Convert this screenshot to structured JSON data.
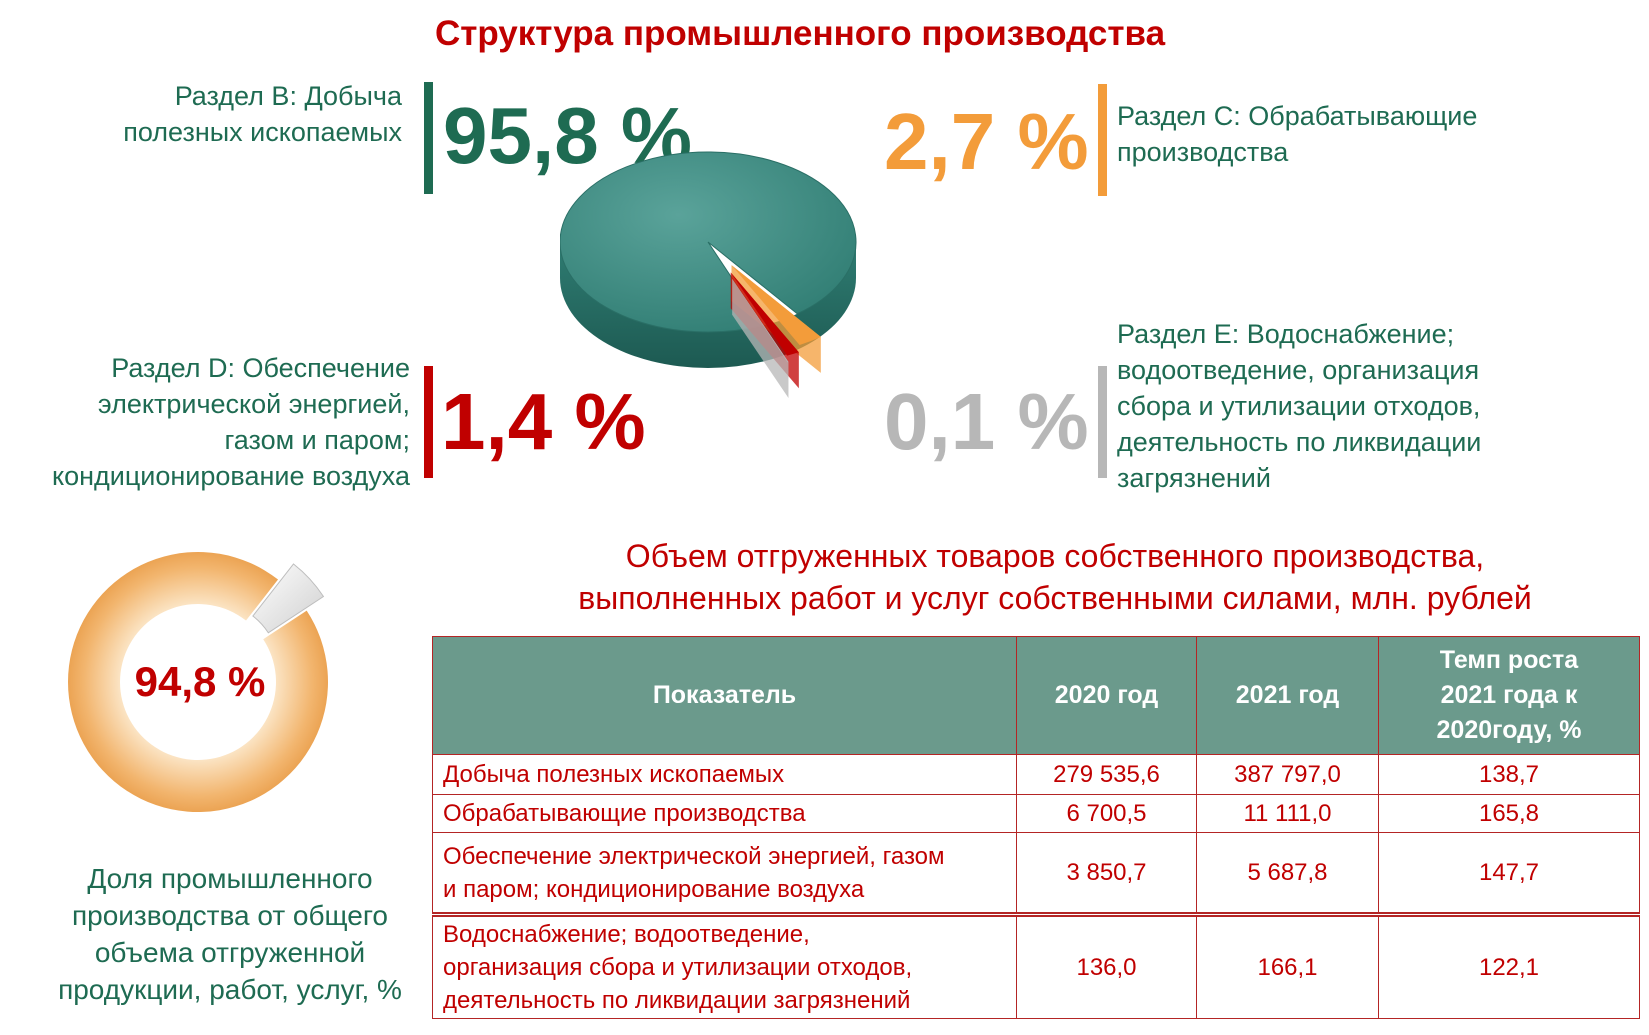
{
  "title": "Структура промышленного производства",
  "structure": [
    {
      "id": "b",
      "label": "Раздел В: Добыча полезных ископаемых",
      "label_lines": [
        "Раздел В: Добыча",
        "полезных  ископаемых"
      ],
      "value": 95.8,
      "value_text": "95,8 %",
      "color": "#1e6b52"
    },
    {
      "id": "c",
      "label": "Раздел С: Обрабатывающие производства",
      "label_lines": [
        "Раздел С: Обрабатывающие",
        "производства"
      ],
      "value": 2.7,
      "value_text": "2,7 %",
      "color": "#f39c3a"
    },
    {
      "id": "d",
      "label": "Раздел D: Обеспечение электрической энергией, газом и паром; кондиционирование воздуха",
      "label_lines": [
        "Раздел D: Обеспечение",
        "электрической энергией,",
        "газом и паром;",
        "кондиционирование воздуха"
      ],
      "value": 1.4,
      "value_text": "1,4 %",
      "color": "#c00000"
    },
    {
      "id": "e",
      "label": "Раздел Е: Водоснабжение; водоотведение, организация сбора и утилизации отходов, деятельность по ликвидации загрязнений",
      "label_lines": [
        "Раздел Е: Водоснабжение;",
        "водоотведение,  организация",
        "сбора и утилизации отходов,",
        "деятельность  по ликвидации",
        "загрязнений"
      ],
      "value": 0.1,
      "value_text": "0,1 %",
      "color": "#b7b7b7"
    }
  ],
  "share": {
    "value": 94.8,
    "value_text": "94,8 %",
    "caption_lines": [
      "Доля промышленного",
      "производства  от общего",
      "объема  отгруженной",
      "продукции,  работ,  услуг, %"
    ]
  },
  "table": {
    "title_lines": [
      "Объем отгруженных товаров собственного производства,",
      "выполненных работ и услуг собственными силами, млн. рублей"
    ],
    "headers": [
      "Показатель",
      "2020 год",
      "2021 год",
      "Темп роста 2021 года к 2020году, %"
    ],
    "header_growth_lines": [
      "Темп роста",
      "2021 года к",
      "2020году, %"
    ],
    "rows": [
      {
        "indicator_lines": [
          "Добыча полезных  ископаемых"
        ],
        "y2020": "279 535,6",
        "y2021": "387 797,0",
        "growth": "138,7"
      },
      {
        "indicator_lines": [
          "Обрабатывающие  производства"
        ],
        "y2020": "6 700,5",
        "y2021": "11 111,0",
        "growth": "165,8"
      },
      {
        "indicator_lines": [
          "Обеспечение электрической энергией, газом",
          "и паром; кондиционирование воздуха"
        ],
        "y2020": "3 850,7",
        "y2021": "5 687,8",
        "growth": "147,7"
      },
      {
        "indicator_lines": [
          "Водоснабжение; водоотведение,",
          "организация сбора и утилизации отходов,",
          "деятельность по ликвидации загрязнений"
        ],
        "y2020": "136,0",
        "y2021": "166,1",
        "growth": "122,1"
      }
    ]
  },
  "chart_data": [
    {
      "type": "pie",
      "title": "Структура промышленного производства",
      "categories": [
        "Раздел В: Добыча полезных ископаемых",
        "Раздел С: Обрабатывающие производства",
        "Раздел D: Обеспечение электрической энергией, газом и паром; кондиционирование воздуха",
        "Раздел Е: Водоснабжение; водоотведение, организация сбора и утилизации отходов, деятельность по ликвидации загрязнений"
      ],
      "values": [
        95.8,
        2.7,
        1.4,
        0.1
      ],
      "colors": [
        "#3f8a80",
        "#f39c3a",
        "#c00000",
        "#b7b7b7"
      ]
    },
    {
      "type": "pie",
      "categories": [
        "Доля промышленного производства от общего объема отгруженной продукции, работ, услуг, %"
      ],
      "values": [
        94.8
      ],
      "colors": [
        "#f0a95a"
      ]
    }
  ]
}
